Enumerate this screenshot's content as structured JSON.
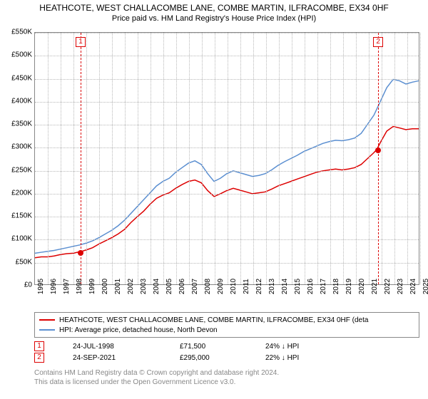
{
  "title": "HEATHCOTE, WEST CHALLACOMBE LANE, COMBE MARTIN, ILFRACOMBE, EX34 0HF",
  "subtitle": "Price paid vs. HM Land Registry's House Price Index (HPI)",
  "chart": {
    "type": "line",
    "background_color": "#ffffff",
    "grid_color": "#b8b8b8",
    "axis_color": "#888888",
    "ylim": [
      0,
      550000
    ],
    "ytick_step": 50000,
    "yticks": [
      "£0",
      "£50K",
      "£100K",
      "£150K",
      "£200K",
      "£250K",
      "£300K",
      "£350K",
      "£400K",
      "£450K",
      "£500K",
      "£550K"
    ],
    "xlim": [
      1995,
      2025
    ],
    "xticks": [
      "1995",
      "1996",
      "1997",
      "1998",
      "1999",
      "2000",
      "2001",
      "2002",
      "2003",
      "2004",
      "2005",
      "2006",
      "2007",
      "2008",
      "2009",
      "2010",
      "2011",
      "2012",
      "2013",
      "2014",
      "2015",
      "2016",
      "2017",
      "2018",
      "2019",
      "2020",
      "2021",
      "2022",
      "2023",
      "2024",
      "2025"
    ],
    "label_fontsize": 10,
    "series": [
      {
        "name": "price_paid",
        "color": "#dd0000",
        "line_width": 1.5,
        "data": [
          {
            "x": 1995.0,
            "y": 58000
          },
          {
            "x": 1995.5,
            "y": 60000
          },
          {
            "x": 1996.0,
            "y": 60000
          },
          {
            "x": 1996.5,
            "y": 62000
          },
          {
            "x": 1997.0,
            "y": 65000
          },
          {
            "x": 1997.5,
            "y": 67000
          },
          {
            "x": 1998.0,
            "y": 68000
          },
          {
            "x": 1998.56,
            "y": 71500
          },
          {
            "x": 1999.0,
            "y": 75000
          },
          {
            "x": 1999.5,
            "y": 80000
          },
          {
            "x": 2000.0,
            "y": 88000
          },
          {
            "x": 2000.5,
            "y": 95000
          },
          {
            "x": 2001.0,
            "y": 102000
          },
          {
            "x": 2001.5,
            "y": 110000
          },
          {
            "x": 2002.0,
            "y": 120000
          },
          {
            "x": 2002.5,
            "y": 135000
          },
          {
            "x": 2003.0,
            "y": 148000
          },
          {
            "x": 2003.5,
            "y": 160000
          },
          {
            "x": 2004.0,
            "y": 175000
          },
          {
            "x": 2004.5,
            "y": 188000
          },
          {
            "x": 2005.0,
            "y": 195000
          },
          {
            "x": 2005.5,
            "y": 200000
          },
          {
            "x": 2006.0,
            "y": 210000
          },
          {
            "x": 2006.5,
            "y": 218000
          },
          {
            "x": 2007.0,
            "y": 225000
          },
          {
            "x": 2007.5,
            "y": 228000
          },
          {
            "x": 2008.0,
            "y": 222000
          },
          {
            "x": 2008.5,
            "y": 205000
          },
          {
            "x": 2009.0,
            "y": 192000
          },
          {
            "x": 2009.5,
            "y": 198000
          },
          {
            "x": 2010.0,
            "y": 205000
          },
          {
            "x": 2010.5,
            "y": 210000
          },
          {
            "x": 2011.0,
            "y": 206000
          },
          {
            "x": 2011.5,
            "y": 202000
          },
          {
            "x": 2012.0,
            "y": 198000
          },
          {
            "x": 2012.5,
            "y": 200000
          },
          {
            "x": 2013.0,
            "y": 202000
          },
          {
            "x": 2013.5,
            "y": 208000
          },
          {
            "x": 2014.0,
            "y": 215000
          },
          {
            "x": 2014.5,
            "y": 220000
          },
          {
            "x": 2015.0,
            "y": 225000
          },
          {
            "x": 2015.5,
            "y": 230000
          },
          {
            "x": 2016.0,
            "y": 235000
          },
          {
            "x": 2016.5,
            "y": 240000
          },
          {
            "x": 2017.0,
            "y": 245000
          },
          {
            "x": 2017.5,
            "y": 248000
          },
          {
            "x": 2018.0,
            "y": 250000
          },
          {
            "x": 2018.5,
            "y": 252000
          },
          {
            "x": 2019.0,
            "y": 250000
          },
          {
            "x": 2019.5,
            "y": 252000
          },
          {
            "x": 2020.0,
            "y": 255000
          },
          {
            "x": 2020.5,
            "y": 262000
          },
          {
            "x": 2021.0,
            "y": 275000
          },
          {
            "x": 2021.5,
            "y": 288000
          },
          {
            "x": 2021.73,
            "y": 295000
          },
          {
            "x": 2022.0,
            "y": 310000
          },
          {
            "x": 2022.5,
            "y": 335000
          },
          {
            "x": 2023.0,
            "y": 345000
          },
          {
            "x": 2023.5,
            "y": 342000
          },
          {
            "x": 2024.0,
            "y": 338000
          },
          {
            "x": 2024.5,
            "y": 340000
          },
          {
            "x": 2025.0,
            "y": 340000
          }
        ]
      },
      {
        "name": "hpi",
        "color": "#5b8fd1",
        "line_width": 1.5,
        "data": [
          {
            "x": 1995.0,
            "y": 68000
          },
          {
            "x": 1995.5,
            "y": 70000
          },
          {
            "x": 1996.0,
            "y": 72000
          },
          {
            "x": 1996.5,
            "y": 74000
          },
          {
            "x": 1997.0,
            "y": 77000
          },
          {
            "x": 1997.5,
            "y": 80000
          },
          {
            "x": 1998.0,
            "y": 83000
          },
          {
            "x": 1998.5,
            "y": 86000
          },
          {
            "x": 1999.0,
            "y": 90000
          },
          {
            "x": 1999.5,
            "y": 95000
          },
          {
            "x": 2000.0,
            "y": 102000
          },
          {
            "x": 2000.5,
            "y": 110000
          },
          {
            "x": 2001.0,
            "y": 118000
          },
          {
            "x": 2001.5,
            "y": 128000
          },
          {
            "x": 2002.0,
            "y": 140000
          },
          {
            "x": 2002.5,
            "y": 155000
          },
          {
            "x": 2003.0,
            "y": 170000
          },
          {
            "x": 2003.5,
            "y": 185000
          },
          {
            "x": 2004.0,
            "y": 200000
          },
          {
            "x": 2004.5,
            "y": 215000
          },
          {
            "x": 2005.0,
            "y": 225000
          },
          {
            "x": 2005.5,
            "y": 232000
          },
          {
            "x": 2006.0,
            "y": 245000
          },
          {
            "x": 2006.5,
            "y": 255000
          },
          {
            "x": 2007.0,
            "y": 265000
          },
          {
            "x": 2007.5,
            "y": 270000
          },
          {
            "x": 2008.0,
            "y": 262000
          },
          {
            "x": 2008.5,
            "y": 242000
          },
          {
            "x": 2009.0,
            "y": 225000
          },
          {
            "x": 2009.5,
            "y": 232000
          },
          {
            "x": 2010.0,
            "y": 242000
          },
          {
            "x": 2010.5,
            "y": 248000
          },
          {
            "x": 2011.0,
            "y": 244000
          },
          {
            "x": 2011.5,
            "y": 240000
          },
          {
            "x": 2012.0,
            "y": 236000
          },
          {
            "x": 2012.5,
            "y": 238000
          },
          {
            "x": 2013.0,
            "y": 242000
          },
          {
            "x": 2013.5,
            "y": 250000
          },
          {
            "x": 2014.0,
            "y": 260000
          },
          {
            "x": 2014.5,
            "y": 268000
          },
          {
            "x": 2015.0,
            "y": 275000
          },
          {
            "x": 2015.5,
            "y": 282000
          },
          {
            "x": 2016.0,
            "y": 290000
          },
          {
            "x": 2016.5,
            "y": 296000
          },
          {
            "x": 2017.0,
            "y": 302000
          },
          {
            "x": 2017.5,
            "y": 308000
          },
          {
            "x": 2018.0,
            "y": 312000
          },
          {
            "x": 2018.5,
            "y": 315000
          },
          {
            "x": 2019.0,
            "y": 314000
          },
          {
            "x": 2019.5,
            "y": 316000
          },
          {
            "x": 2020.0,
            "y": 320000
          },
          {
            "x": 2020.5,
            "y": 330000
          },
          {
            "x": 2021.0,
            "y": 350000
          },
          {
            "x": 2021.5,
            "y": 370000
          },
          {
            "x": 2022.0,
            "y": 400000
          },
          {
            "x": 2022.5,
            "y": 430000
          },
          {
            "x": 2023.0,
            "y": 448000
          },
          {
            "x": 2023.5,
            "y": 445000
          },
          {
            "x": 2024.0,
            "y": 438000
          },
          {
            "x": 2024.5,
            "y": 442000
          },
          {
            "x": 2025.0,
            "y": 445000
          }
        ]
      }
    ],
    "markers": [
      {
        "num": "1",
        "x": 1998.56,
        "y": 71500
      },
      {
        "num": "2",
        "x": 2021.73,
        "y": 295000
      }
    ]
  },
  "legend": {
    "items": [
      {
        "color": "#dd0000",
        "label": "HEATHCOTE, WEST CHALLACOMBE LANE, COMBE MARTIN, ILFRACOMBE, EX34 0HF (deta"
      },
      {
        "color": "#5b8fd1",
        "label": "HPI: Average price, detached house, North Devon"
      }
    ]
  },
  "transactions": [
    {
      "num": "1",
      "date": "24-JUL-1998",
      "price": "£71,500",
      "delta": "24% ↓ HPI"
    },
    {
      "num": "2",
      "date": "24-SEP-2021",
      "price": "£295,000",
      "delta": "22% ↓ HPI"
    }
  ],
  "footer_lines": [
    "Contains HM Land Registry data © Crown copyright and database right 2024.",
    "This data is licensed under the Open Government Licence v3.0."
  ]
}
